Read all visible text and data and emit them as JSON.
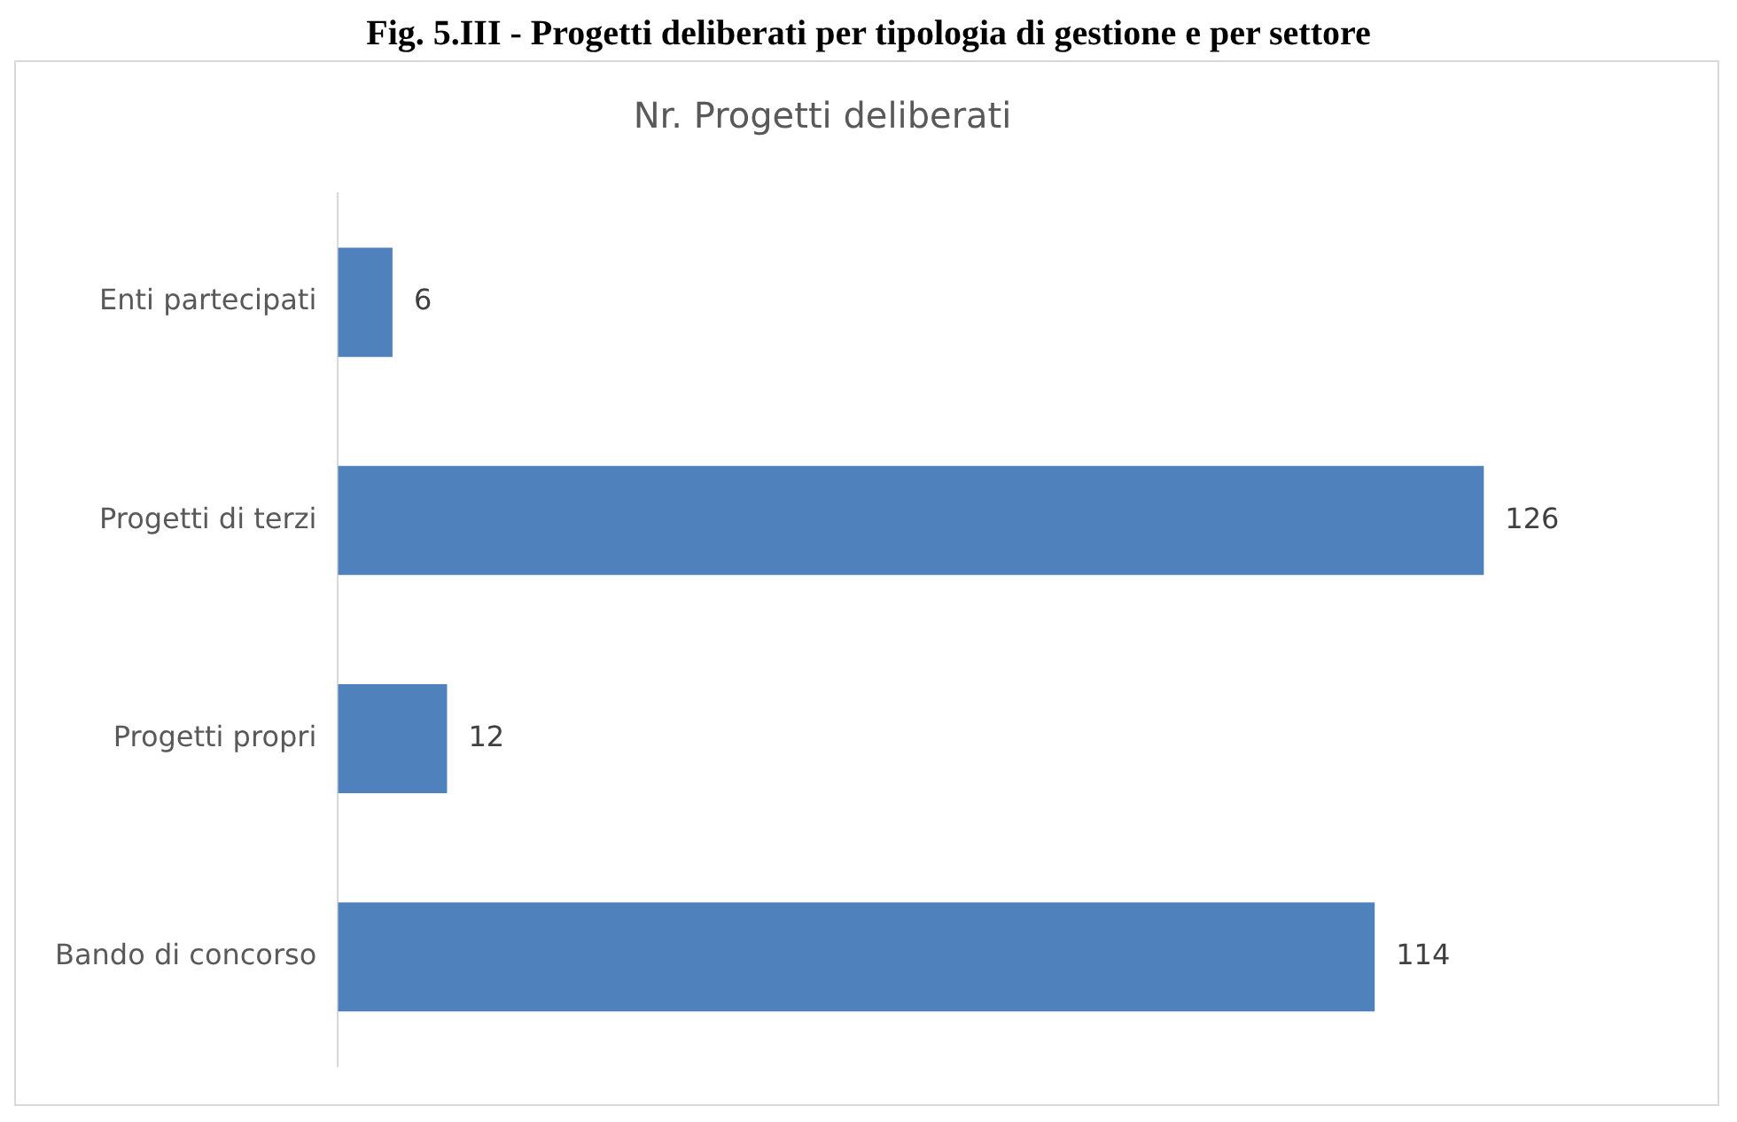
{
  "chart_data": {
    "type": "bar",
    "orientation": "horizontal",
    "title": "Fig. 5.III - Progetti deliberati per tipologia di gestione e per settore",
    "subtitle": "Nr. Progetti deliberati",
    "categories": [
      "Enti partecipati",
      "Progetti di terzi",
      "Progetti propri",
      "Bando di concorso"
    ],
    "values": [
      6,
      126,
      12,
      114
    ],
    "color": "#4f81bd",
    "data_labels": true,
    "tick_labels": "y",
    "grid": false,
    "legend": false
  }
}
